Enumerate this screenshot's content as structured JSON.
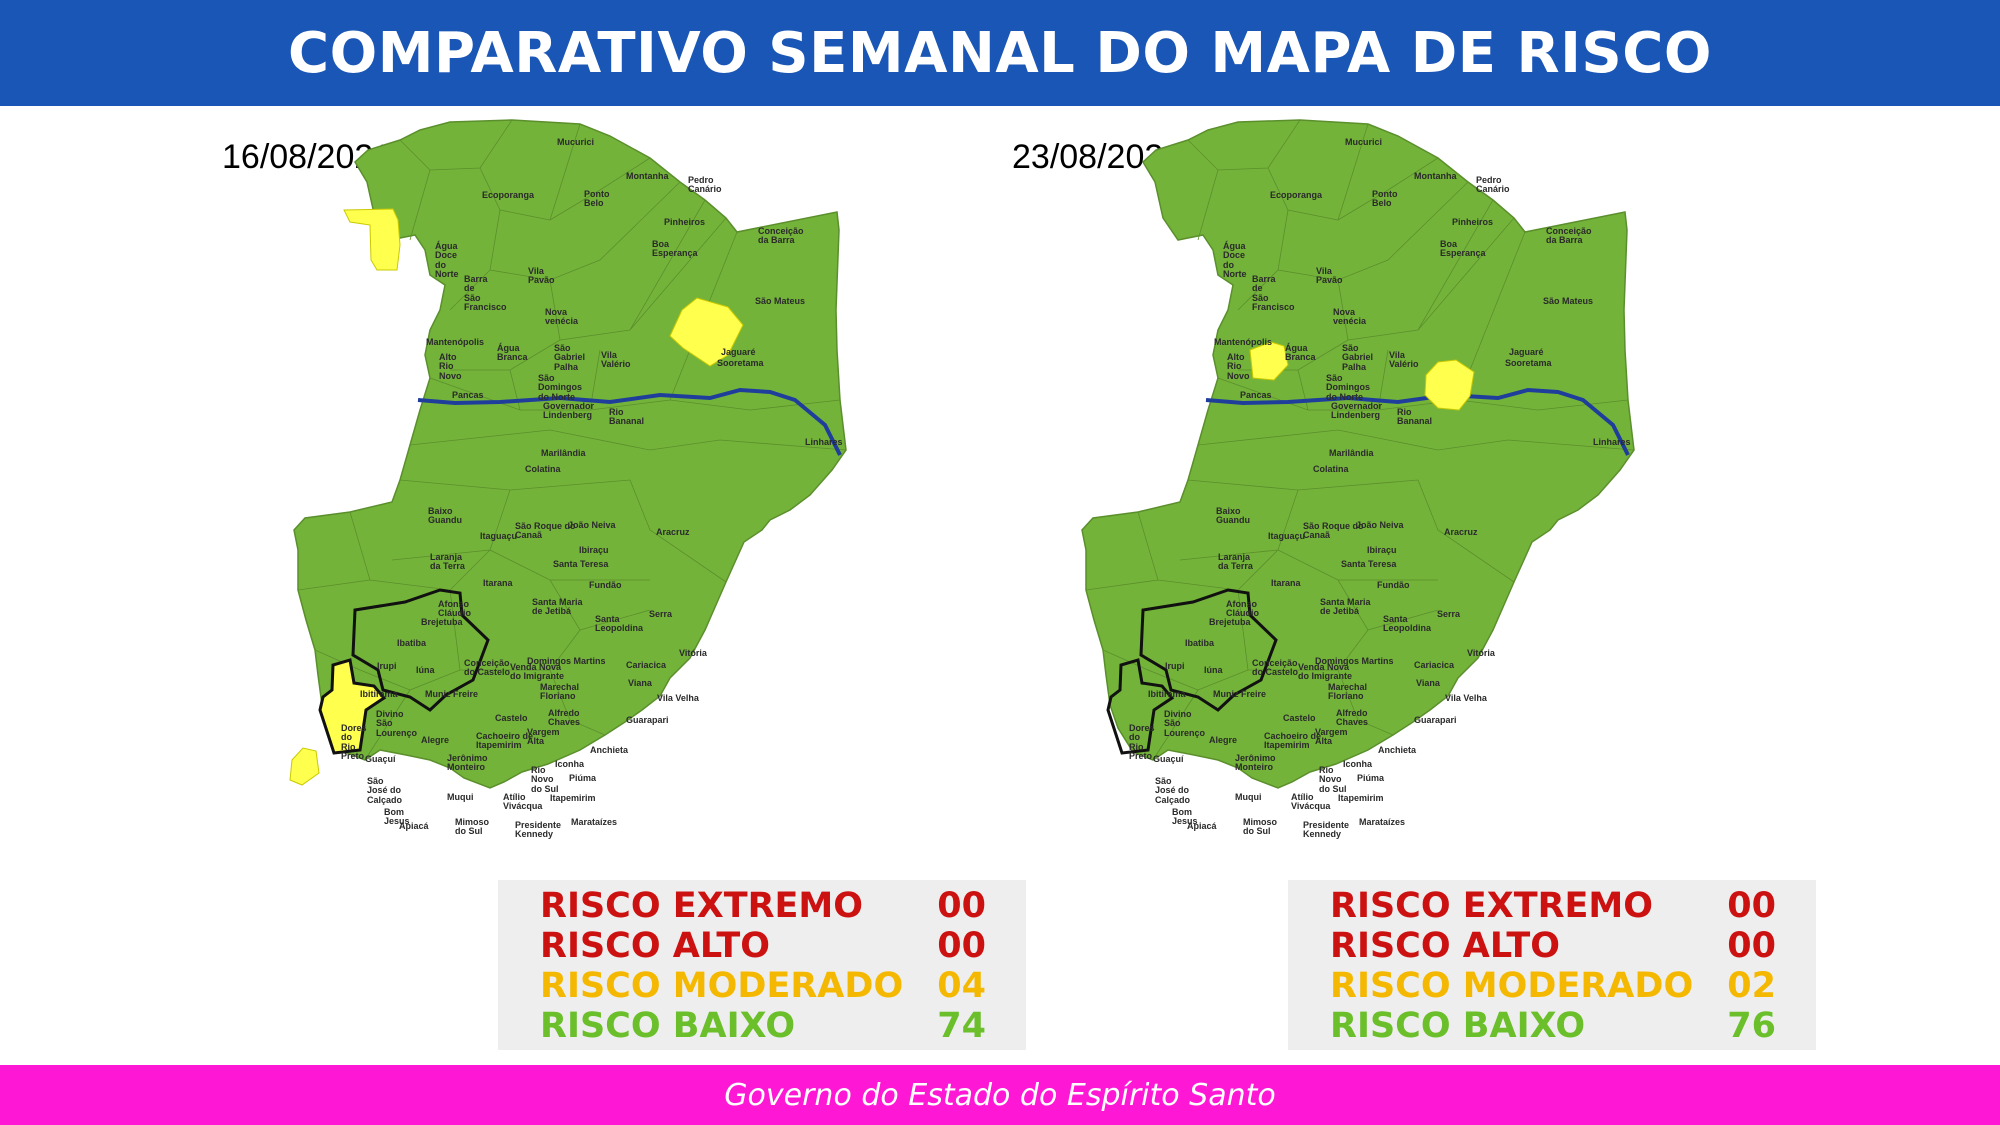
{
  "header": {
    "title": "COMPARATIVO SEMANAL DO MAPA DE RISCO"
  },
  "colors": {
    "header": "#1a56b6",
    "footer": "#ff17d6",
    "land": "#74b33a",
    "highlight": "#ffff4d",
    "river": "#1f3e9c",
    "extremo": "#cc1111",
    "alto": "#cc1111",
    "moderado": "#f5b800",
    "baixo": "#6bbf2a"
  },
  "municipalities": {
    "mucurici": "Mucurici",
    "montanha": "Montanha",
    "pedro_canario": "Pedro\nCanário",
    "ecoporanga": "Ecoporanga",
    "ponto_belo": "Ponto\nBelo",
    "pinheiros": "Pinheiros",
    "conceicao_barra": "Conceição\nda Barra",
    "agua_doce": "Água\nDoce\ndo\nNorte",
    "boa_esperanca": "Boa\nEsperança",
    "vila_pavao": "Vila\nPavão",
    "barra_sao_francisco": "Barra\nde\nSão\nFrancisco",
    "nova_venecia": "Nova\nvenécia",
    "sao_mateus": "São Mateus",
    "mantenopolis": "Mantenópolis",
    "agua_branca": "Água\nBranca",
    "sao_gabriel": "São\nGabriel\nPalha",
    "vila_valerio": "Vila\nValério",
    "jaguare": "Jaguaré",
    "alto_rio_novo": "Alto\nRio\nNovo",
    "sao_domingos": "São\nDomingos\ndo Norte",
    "sooretama": "Sooretama",
    "pancas": "Pancas",
    "governador_lindenberg": "Governador\nLindenberg",
    "rio_bananal": "Rio\nBananal",
    "linhares": "Linhares",
    "marilandia": "Marilândia",
    "colatina": "Colatina",
    "baixo_guandu": "Baixo\nGuandu",
    "sao_roque": "São Roque do\nCanaã",
    "joao_neiva": "João Neiva",
    "aracruz": "Aracruz",
    "itaguacu": "Itaguaçu",
    "ibiracu": "Ibiraçu",
    "laranja_terra": "Laranja\nda Terra",
    "santa_teresa": "Santa Teresa",
    "itarana": "Itarana",
    "fundao": "Fundão",
    "afonso_claudio": "Afonso\nCláudio",
    "santa_maria_jetiba": "Santa Maria\nde Jetibá",
    "santa_leopoldina": "Santa\nLeopoldina",
    "serra": "Serra",
    "brejetuba": "Brejetuba",
    "ibatiba": "Ibatiba",
    "vitoria": "Vitória",
    "domingos_martins": "Domingos Martins",
    "irupi": "Irupi",
    "iuna": "Iúna",
    "conceicao_castelo": "Conceição\ndo Castelo",
    "venda_nova": "Venda Nova\ndo Imigrante",
    "cariacica": "Cariacica",
    "ibitirama": "Ibitirama",
    "muniz_freire": "Muniz Freire",
    "marechal_floriano": "Marechal\nFloriano",
    "viana": "Viana",
    "vila_velha": "Vila Velha",
    "divino": "Divino\nSão\nLourenço",
    "castelo": "Castelo",
    "alfredo_chaves": "Alfredo\nChaves",
    "dores_rio_preto": "Dores\ndo\nRio\nPreto",
    "alegre": "Alegre",
    "cachoeiro": "Cachoeiro de\nItapemirim",
    "vargem_alta": "Vargem\nAlta",
    "guarapari": "Guarapari",
    "guacui": "Guaçuí",
    "jeronimo_monteiro": "Jerônimo\nMonteiro",
    "anchieta": "Anchieta",
    "iconha": "Iconha",
    "rio_novo_sul": "Rio\nNovo\ndo Sul",
    "piuma": "Piúma",
    "sao_jose_calcado": "São\nJosé do\nCalçado",
    "muqui": "Muqui",
    "atilio_vivacqua": "Atílio\nVivácqua",
    "itapemirim": "Itapemirim",
    "bom_jesus": "Bom\nJesus",
    "apiaca": "Apiacá",
    "mimoso": "Mimoso\ndo Sul",
    "presidente_kennedy": "Presidente\nKennedy",
    "marataizes": "Marataízes"
  },
  "left_map": {
    "date": "16/08/2021",
    "highlighted": [
      "Água Doce do Norte",
      "Sooretama",
      "Alegre",
      "São José do Calçado"
    ],
    "legend": [
      {
        "label": "RISCO EXTREMO",
        "value": "00"
      },
      {
        "label": "RISCO ALTO",
        "value": "00"
      },
      {
        "label": "RISCO MODERADO",
        "value": "04"
      },
      {
        "label": "RISCO BAIXO",
        "value": "74"
      }
    ]
  },
  "right_map": {
    "date": "23/08/2021",
    "highlighted": [
      "Alto Rio Novo",
      "Rio Bananal"
    ],
    "legend": [
      {
        "label": "RISCO EXTREMO",
        "value": "00"
      },
      {
        "label": "RISCO ALTO",
        "value": "00"
      },
      {
        "label": "RISCO MODERADO",
        "value": "02"
      },
      {
        "label": "RISCO BAIXO",
        "value": "76"
      }
    ]
  },
  "footer": {
    "text": "Governo do Estado do Espírito Santo"
  }
}
